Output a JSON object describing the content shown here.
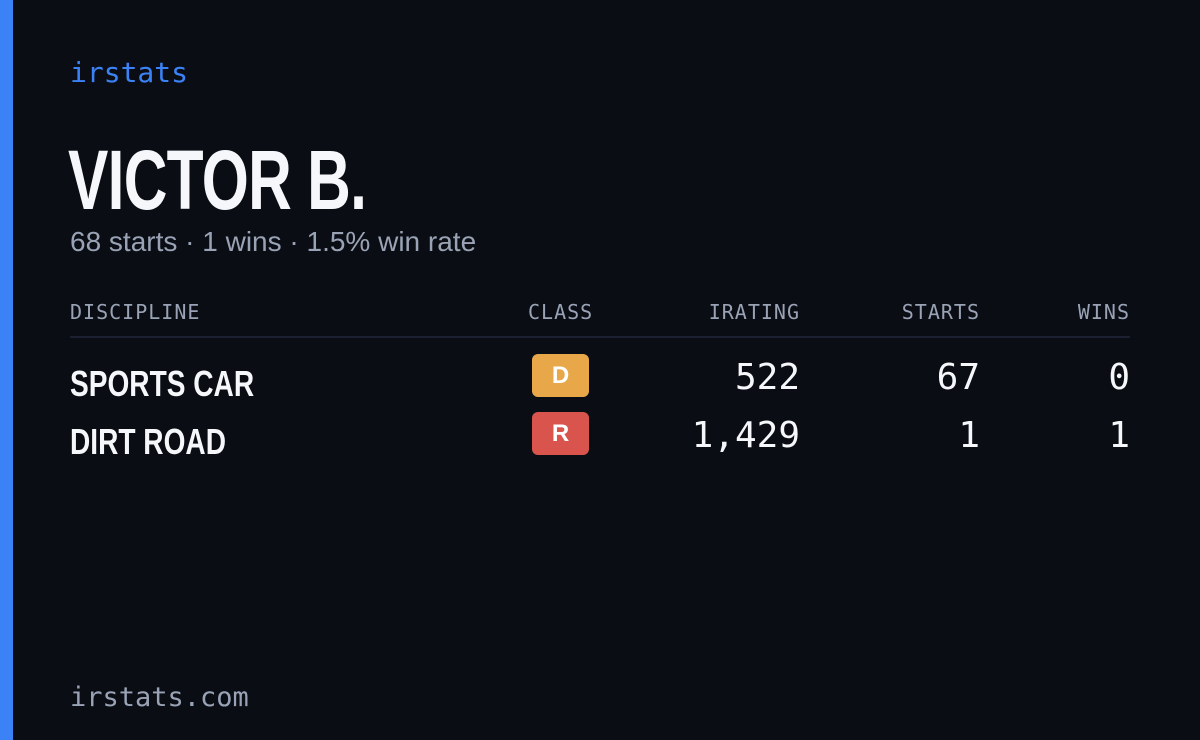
{
  "brand": "irstats",
  "driver": {
    "name": "VICTOR B.",
    "summary": "68 starts · 1 wins · 1.5% win rate"
  },
  "table": {
    "headers": {
      "discipline": "DISCIPLINE",
      "class": "CLASS",
      "irating": "IRATING",
      "starts": "STARTS",
      "wins": "WINS"
    },
    "rows": [
      {
        "discipline": "SPORTS CAR",
        "class": "D",
        "class_color": "#e8a84a",
        "irating": "522",
        "starts": "67",
        "wins": "0"
      },
      {
        "discipline": "DIRT ROAD",
        "class": "R",
        "class_color": "#d9544d",
        "irating": "1,429",
        "starts": "1",
        "wins": "1"
      }
    ]
  },
  "footer": "irstats.com",
  "colors": {
    "accent": "#3b82f6",
    "background": "#0a0d14",
    "text_primary": "#f5f7fb",
    "text_muted": "#9aa3b5"
  }
}
